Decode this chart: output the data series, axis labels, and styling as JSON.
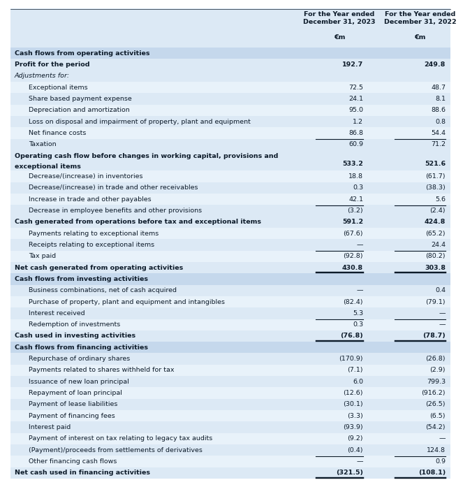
{
  "col1_header": "For the Year ended\nDecember 31, 2023\n€m",
  "col2_header": "For the Year ended\nDecember 31, 2022\n€m",
  "rows": [
    {
      "label": "Cash flows from operating activities",
      "v1": "",
      "v2": "",
      "style": "section_header",
      "indent": 0
    },
    {
      "label": "Profit for the period",
      "v1": "192.7",
      "v2": "249.8",
      "style": "bold",
      "indent": 0
    },
    {
      "label": "Adjustments for:",
      "v1": "",
      "v2": "",
      "style": "italic_label",
      "indent": 0
    },
    {
      "label": "Exceptional items",
      "v1": "72.5",
      "v2": "48.7",
      "style": "normal",
      "indent": 1
    },
    {
      "label": "Share based payment expense",
      "v1": "24.1",
      "v2": "8.1",
      "style": "normal",
      "indent": 1
    },
    {
      "label": "Depreciation and amortization",
      "v1": "95.0",
      "v2": "88.6",
      "style": "normal",
      "indent": 1
    },
    {
      "label": "Loss on disposal and impairment of property, plant and equipment",
      "v1": "1.2",
      "v2": "0.8",
      "style": "normal",
      "indent": 1
    },
    {
      "label": "Net finance costs",
      "v1": "86.8",
      "v2": "54.4",
      "style": "normal",
      "indent": 1
    },
    {
      "label": "Taxation",
      "v1": "60.9",
      "v2": "71.2",
      "style": "normal_topline",
      "indent": 1
    },
    {
      "label": "Operating cash flow before changes in working capital, provisions and exceptional items",
      "v1": "533.2",
      "v2": "521.6",
      "style": "bold_wrap",
      "indent": 0
    },
    {
      "label": "Decrease/(increase) in inventories",
      "v1": "18.8",
      "v2": "(61.7)",
      "style": "normal",
      "indent": 1
    },
    {
      "label": "Decrease/(increase) in trade and other receivables",
      "v1": "0.3",
      "v2": "(38.3)",
      "style": "normal",
      "indent": 1
    },
    {
      "label": "Increase in trade and other payables",
      "v1": "42.1",
      "v2": "5.6",
      "style": "normal",
      "indent": 1
    },
    {
      "label": "Decrease in employee benefits and other provisions",
      "v1": "(3.2)",
      "v2": "(2.4)",
      "style": "normal_topline",
      "indent": 1
    },
    {
      "label": "Cash generated from operations before tax and exceptional items",
      "v1": "591.2",
      "v2": "424.8",
      "style": "bold",
      "indent": 0
    },
    {
      "label": "Payments relating to exceptional items",
      "v1": "(67.6)",
      "v2": "(65.2)",
      "style": "normal",
      "indent": 1
    },
    {
      "label": "Receipts relating to exceptional items",
      "v1": "—",
      "v2": "24.4",
      "style": "normal",
      "indent": 1
    },
    {
      "label": "Tax paid",
      "v1": "(92.8)",
      "v2": "(80.2)",
      "style": "normal_topline",
      "indent": 1
    },
    {
      "label": "Net cash generated from operating activities",
      "v1": "430.8",
      "v2": "303.8",
      "style": "bold_doubleline",
      "indent": 0
    },
    {
      "label": "Cash flows from investing activities",
      "v1": "",
      "v2": "",
      "style": "section_header",
      "indent": 0
    },
    {
      "label": "Business combinations, net of cash acquired",
      "v1": "—",
      "v2": "0.4",
      "style": "normal",
      "indent": 1
    },
    {
      "label": "Purchase of property, plant and equipment and intangibles",
      "v1": "(82.4)",
      "v2": "(79.1)",
      "style": "normal",
      "indent": 1
    },
    {
      "label": "Interest received",
      "v1": "5.3",
      "v2": "—",
      "style": "normal",
      "indent": 1
    },
    {
      "label": "Redemption of investments",
      "v1": "0.3",
      "v2": "—",
      "style": "normal_topline",
      "indent": 1
    },
    {
      "label": "Cash used in investing activities",
      "v1": "(76.8)",
      "v2": "(78.7)",
      "style": "bold_doubleline",
      "indent": 0
    },
    {
      "label": "Cash flows from financing activities",
      "v1": "",
      "v2": "",
      "style": "section_header",
      "indent": 0
    },
    {
      "label": "Repurchase of ordinary shares",
      "v1": "(170.9)",
      "v2": "(26.8)",
      "style": "normal",
      "indent": 1
    },
    {
      "label": "Payments related to shares withheld for tax",
      "v1": "(7.1)",
      "v2": "(2.9)",
      "style": "normal",
      "indent": 1
    },
    {
      "label": "Issuance of new loan principal",
      "v1": "6.0",
      "v2": "799.3",
      "style": "normal",
      "indent": 1
    },
    {
      "label": "Repayment of loan principal",
      "v1": "(12.6)",
      "v2": "(916.2)",
      "style": "normal",
      "indent": 1
    },
    {
      "label": "Payment of lease liabilities",
      "v1": "(30.1)",
      "v2": "(26.5)",
      "style": "normal",
      "indent": 1
    },
    {
      "label": "Payment of financing fees",
      "v1": "(3.3)",
      "v2": "(6.5)",
      "style": "normal",
      "indent": 1
    },
    {
      "label": "Interest paid",
      "v1": "(93.9)",
      "v2": "(54.2)",
      "style": "normal",
      "indent": 1
    },
    {
      "label": "Payment of interest on tax relating to legacy tax audits",
      "v1": "(9.2)",
      "v2": "—",
      "style": "normal",
      "indent": 1
    },
    {
      "label": "(Payment)/proceeds from settlements of derivatives",
      "v1": "(0.4)",
      "v2": "124.8",
      "style": "normal",
      "indent": 1
    },
    {
      "label": "Other financing cash flows",
      "v1": "—",
      "v2": "0.9",
      "style": "normal_topline",
      "indent": 1
    },
    {
      "label": "Net cash used in financing activities",
      "v1": "(321.5)",
      "v2": "(108.1)",
      "style": "bold_doubleline",
      "indent": 0
    }
  ],
  "bg_light": "#dce9f5",
  "bg_lighter": "#e8f2fa",
  "bg_section": "#c5d8ec",
  "font_color": "#0d1b2a",
  "font_size": 6.8,
  "header_font_size": 6.8
}
